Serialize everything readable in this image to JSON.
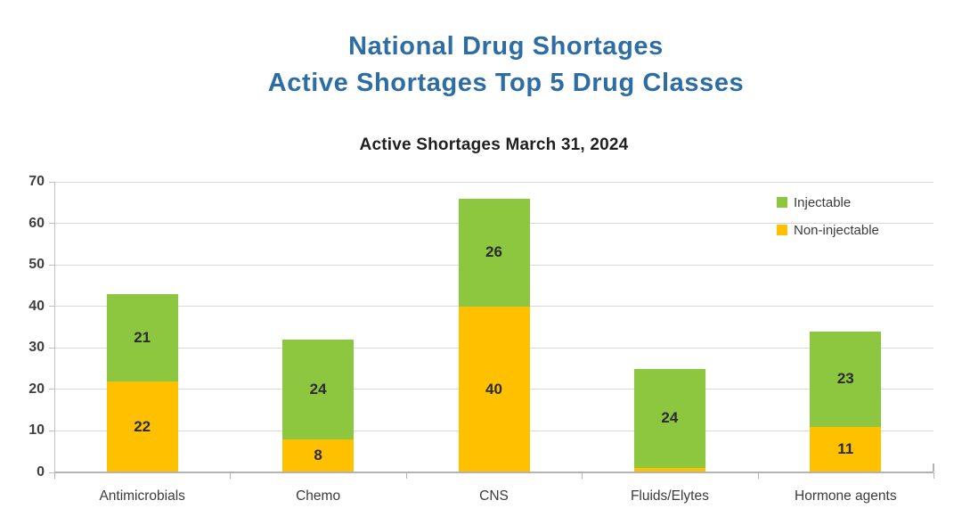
{
  "page": {
    "title_line1": "National Drug Shortages",
    "title_line2": "Active Shortages Top 5 Drug Classes",
    "title_color": "#2e6da4"
  },
  "chart_data": {
    "type": "bar",
    "stacked": true,
    "title": "Active Shortages March 31, 2024",
    "categories": [
      "Antimicrobials",
      "Chemo",
      "CNS",
      "Fluids/Elytes",
      "Hormone agents"
    ],
    "series": [
      {
        "name": "Non-injectable",
        "color": "#FFC000",
        "values": [
          22,
          8,
          40,
          1,
          11
        ]
      },
      {
        "name": "Injectable",
        "color": "#8DC63F",
        "values": [
          21,
          24,
          26,
          24,
          23
        ]
      }
    ],
    "ylim": [
      0,
      70
    ],
    "yticks": [
      0,
      10,
      20,
      30,
      40,
      50,
      60,
      70
    ],
    "grid": true,
    "legend_position": "top-right",
    "legend_order": [
      "Injectable",
      "Non-injectable"
    ]
  },
  "colors": {
    "grid": "#d9d9d9",
    "axis": "#b3b3b3",
    "tick_text": "#404040",
    "label_text": "#2b2b2b"
  }
}
